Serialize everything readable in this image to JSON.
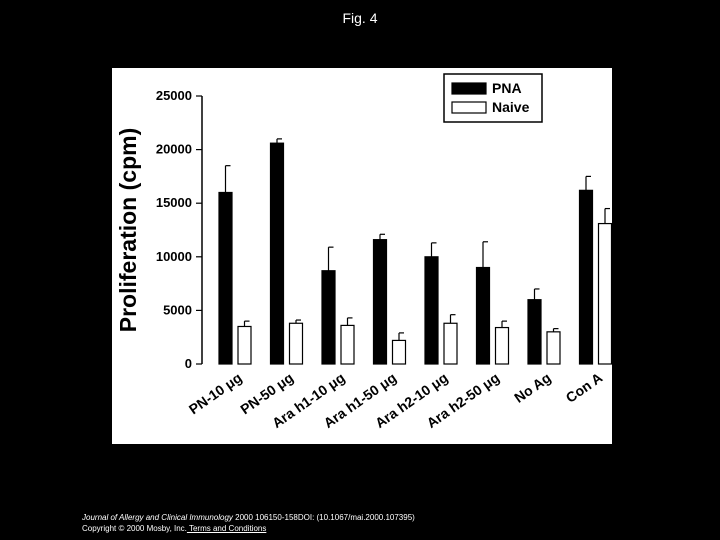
{
  "page": {
    "title": "Fig. 4"
  },
  "footer": {
    "journal": "Journal of Allergy and Clinical Immunology",
    "citation": " 2000 106150-158DOI: (10.1067/mai.2000.107395)",
    "copyright": "Copyright © 2000 Mosby, Inc.",
    "terms_link": " Terms and Conditions"
  },
  "chart_data": {
    "type": "bar",
    "title": "",
    "xlabel": "",
    "ylabel": "Proliferation (cpm)",
    "ylim": [
      0,
      25000
    ],
    "yticks": [
      0,
      5000,
      10000,
      15000,
      20000,
      25000
    ],
    "grid": false,
    "legend_position": "top-right",
    "categories": [
      "PN-10 μg",
      "PN-50 μg",
      "Ara h1-10 μg",
      "Ara h1-50 μg",
      "Ara h2-10 μg",
      "Ara h2-50 μg",
      "No Ag",
      "Con A"
    ],
    "series": [
      {
        "name": "PNA",
        "color": "#000000",
        "values": [
          16000,
          20600,
          8700,
          11600,
          10000,
          9000,
          6000,
          16200
        ],
        "errors": [
          2500,
          400,
          2200,
          500,
          1300,
          2400,
          1000,
          1300
        ]
      },
      {
        "name": "Naive",
        "color": "#ffffff",
        "values": [
          3500,
          3800,
          3600,
          2200,
          3800,
          3400,
          3000,
          13100
        ],
        "errors": [
          500,
          300,
          700,
          700,
          800,
          600,
          300,
          1400
        ]
      }
    ]
  }
}
